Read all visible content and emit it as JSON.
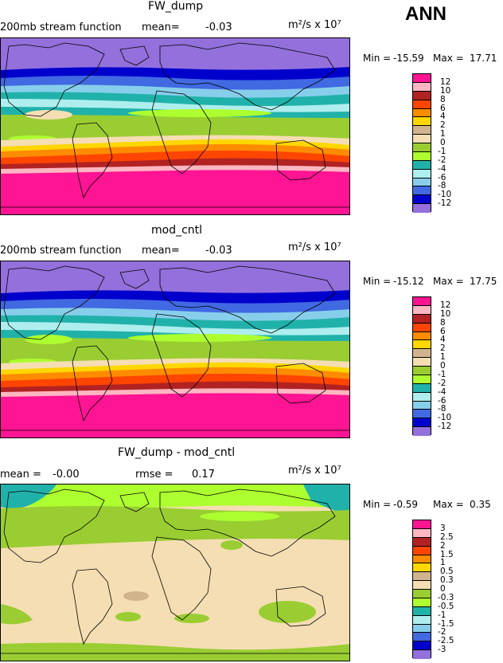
{
  "season": "ANN",
  "panels": [
    {
      "title": "FW_dump",
      "left_label": "200mb stream function",
      "mean_label": "mean=",
      "mean_value": "-0.03",
      "units": "m²/s x 10⁷",
      "min_label": "Min =",
      "min_value": "-15.59",
      "max_label": "Max =",
      "max_value": "17.71",
      "levels": [
        "12",
        "10",
        "8",
        "6",
        "4",
        "2",
        "1",
        "0",
        "-1",
        "-2",
        "-4",
        "-6",
        "-8",
        "-10",
        "-12"
      ]
    },
    {
      "title": "mod_cntl",
      "left_label": "200mb stream function",
      "mean_label": "mean=",
      "mean_value": "-0.03",
      "units": "m²/s x 10⁷",
      "min_label": "Min =",
      "min_value": "-15.12",
      "max_label": "Max =",
      "max_value": "17.75",
      "levels": [
        "12",
        "10",
        "8",
        "6",
        "4",
        "2",
        "1",
        "0",
        "-1",
        "-2",
        "-4",
        "-6",
        "-8",
        "-10",
        "-12"
      ]
    },
    {
      "title": "FW_dump - mod_cntl",
      "mean_label": "mean =",
      "mean_value": "-0.00",
      "rmse_label": "rmse =",
      "rmse_value": "0.17",
      "units": "m²/s x 10⁷",
      "min_label": "Min =",
      "min_value": "-0.59",
      "max_label": "Max =",
      "max_value": "0.35",
      "levels": [
        "3",
        "2.5",
        "2",
        "1.5",
        "1",
        "0.5",
        "0.3",
        "0",
        "-0.3",
        "-0.5",
        "-1",
        "-1.5",
        "-2",
        "-2.5",
        "-3"
      ]
    }
  ],
  "colorbar_colors": [
    "#ff1493",
    "#ffb6c1",
    "#b22222",
    "#ff4500",
    "#ff8c00",
    "#ffd700",
    "#d2b48c",
    "#f5deb3",
    "#9acd32",
    "#adff2f",
    "#20b2aa",
    "#afeeee",
    "#87ceeb",
    "#4169e1",
    "#0000cd",
    "#9370db"
  ]
}
